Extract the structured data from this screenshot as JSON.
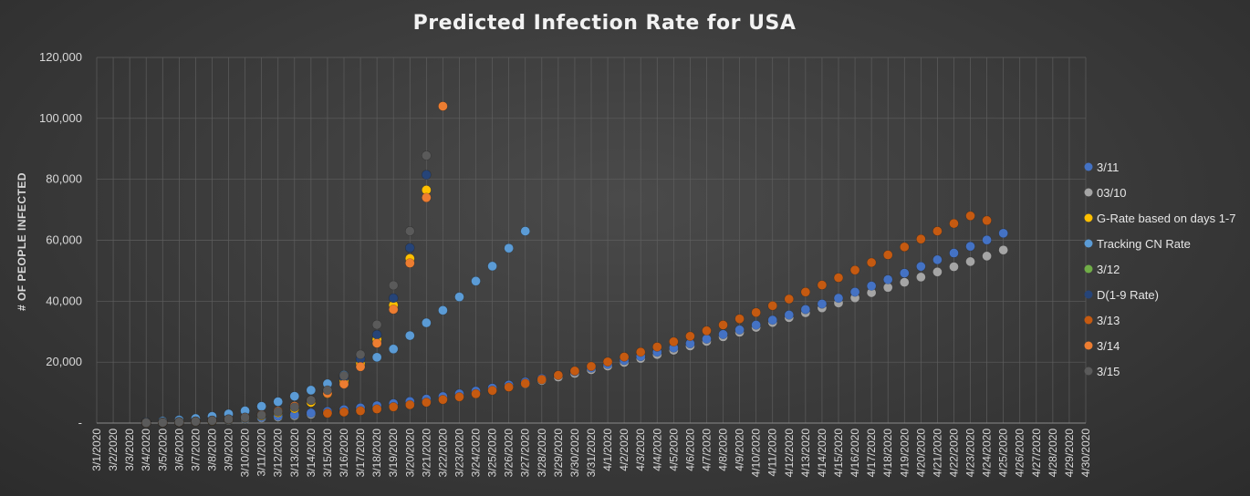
{
  "chart_data": {
    "type": "scatter",
    "title": "Predicted Infection Rate for USA",
    "ylabel": "# OF PEOPLE INFECTED",
    "xlabel": "",
    "ylim": [
      0,
      120000
    ],
    "yticks": [
      0,
      20000,
      40000,
      60000,
      80000,
      100000,
      120000
    ],
    "ytick_labels": [
      "-",
      "20,000",
      "40,000",
      "60,000",
      "80,000",
      "100,000",
      "120,000"
    ],
    "x_labels": [
      "3/1/2020",
      "3/2/2020",
      "3/3/2020",
      "3/4/2020",
      "3/5/2020",
      "3/6/2020",
      "3/7/2020",
      "3/8/2020",
      "3/9/2020",
      "3/10/2020",
      "3/11/2020",
      "3/12/2020",
      "3/13/2020",
      "3/14/2020",
      "3/15/2020",
      "3/16/2020",
      "3/17/2020",
      "3/18/2020",
      "3/19/2020",
      "3/20/2020",
      "3/21/2020",
      "3/22/2020",
      "3/23/2020",
      "3/24/2020",
      "3/25/2020",
      "3/26/2020",
      "3/27/2020",
      "3/28/2020",
      "3/29/2020",
      "3/30/2020",
      "3/31/2020",
      "4/1/2020",
      "4/2/2020",
      "4/3/2020",
      "4/4/2020",
      "4/5/2020",
      "4/6/2020",
      "4/7/2020",
      "4/8/2020",
      "4/9/2020",
      "4/10/2020",
      "4/11/2020",
      "4/12/2020",
      "4/13/2020",
      "4/14/2020",
      "4/15/2020",
      "4/16/2020",
      "4/17/2020",
      "4/18/2020",
      "4/19/2020",
      "4/20/2020",
      "4/21/2020",
      "4/22/2020",
      "4/23/2020",
      "4/24/2020",
      "4/25/2020",
      "4/26/2020",
      "4/27/2020",
      "4/28/2020",
      "4/29/2020",
      "4/30/2020"
    ],
    "grid": true,
    "legend_position": "right",
    "series": [
      {
        "name": "3/11",
        "color": "#4472c4",
        "start": "3/4/2020",
        "values": [
          150,
          250,
          400,
          600,
          850,
          1150,
          1500,
          1900,
          2300,
          2800,
          3300,
          3800,
          4400,
          5000,
          5700,
          6400,
          7100,
          7900,
          8700,
          9600,
          10500,
          11500,
          12500,
          13500,
          14600,
          15700,
          16900,
          18100,
          19300,
          20600,
          21900,
          23300,
          24700,
          26100,
          27600,
          29100,
          30600,
          32200,
          33800,
          35500,
          37300,
          39100,
          41000,
          43000,
          45000,
          47100,
          49200,
          51400,
          53600,
          55800,
          58000,
          60100,
          62300
        ]
      },
      {
        "name": "03/10",
        "color": "#a5a5a5",
        "start": "3/4/2020",
        "values": [
          120,
          220,
          350,
          520,
          750,
          1000,
          1300,
          1650,
          2000,
          2450,
          2900,
          3400,
          3900,
          4500,
          5100,
          5800,
          6500,
          7300,
          8100,
          9000,
          9900,
          10900,
          11900,
          12900,
          14000,
          15100,
          16300,
          17500,
          18700,
          19900,
          21200,
          22500,
          23900,
          25300,
          26800,
          28300,
          29800,
          31400,
          33000,
          34600,
          36200,
          37800,
          39400,
          41100,
          42800,
          44500,
          46200,
          47900,
          49600,
          51300,
          53000,
          54800,
          56800
        ]
      },
      {
        "name": "G-Rate based on days 1-7",
        "color": "#ffc000",
        "start": "3/4/2020",
        "values": [
          100,
          200,
          350,
          550,
          800,
          1200,
          1700,
          2400,
          3400,
          4800,
          6800,
          9700,
          13700,
          19400,
          27400,
          38700,
          54000,
          76500
        ]
      },
      {
        "name": "Tracking CN Rate",
        "color": "#5b9bd5",
        "start": "3/4/2020",
        "values": [
          300,
          600,
          1000,
          1500,
          2200,
          3000,
          4000,
          5500,
          7000,
          8800,
          10800,
          12900,
          15700,
          18500,
          21600,
          24300,
          28700,
          32900,
          37000,
          41400,
          46600,
          51500,
          57400,
          63000
        ]
      },
      {
        "name": "3/12",
        "color": "#70ad47",
        "start": "3/4/2020",
        "values": [
          120,
          220,
          350,
          520,
          750,
          1000,
          1300,
          1650,
          2000,
          2450,
          2900,
          3400,
          3900,
          4500,
          5100,
          5700,
          6300
        ]
      },
      {
        "name": "D(1-9 Rate)",
        "color": "#264478",
        "start": "3/4/2020",
        "values": [
          100,
          200,
          350,
          550,
          850,
          1250,
          1800,
          2600,
          3700,
          5300,
          7500,
          10600,
          15000,
          21000,
          29000,
          41000,
          57500,
          81500
        ]
      },
      {
        "name": "3/13",
        "color": "#c55a11",
        "start": "3/15/2020",
        "values": [
          3200,
          3600,
          4000,
          4600,
          5300,
          6000,
          6800,
          7700,
          8600,
          9600,
          10700,
          11800,
          13000,
          14300,
          15700,
          17100,
          18600,
          20100,
          21700,
          23300,
          25000,
          26700,
          28500,
          30300,
          32200,
          34200,
          36300,
          38500,
          40700,
          43000,
          45300,
          47700,
          50200,
          52700,
          55200,
          57800,
          60400,
          63000,
          65500,
          68000,
          66500
        ]
      },
      {
        "name": "3/14",
        "color": "#ed7d31",
        "start": "3/4/2020",
        "values": [
          100,
          200,
          350,
          550,
          850,
          1250,
          1850,
          2700,
          3900,
          5500,
          7500,
          9800,
          12800,
          18500,
          26200,
          37300,
          52500,
          74000,
          104000
        ]
      },
      {
        "name": "3/15",
        "color": "#5a5a5a",
        "start": "3/4/2020",
        "values": [
          100,
          200,
          350,
          550,
          850,
          1250,
          1800,
          2600,
          3700,
          5200,
          7500,
          10800,
          15500,
          22500,
          32300,
          45200,
          63000,
          87800
        ]
      }
    ]
  }
}
